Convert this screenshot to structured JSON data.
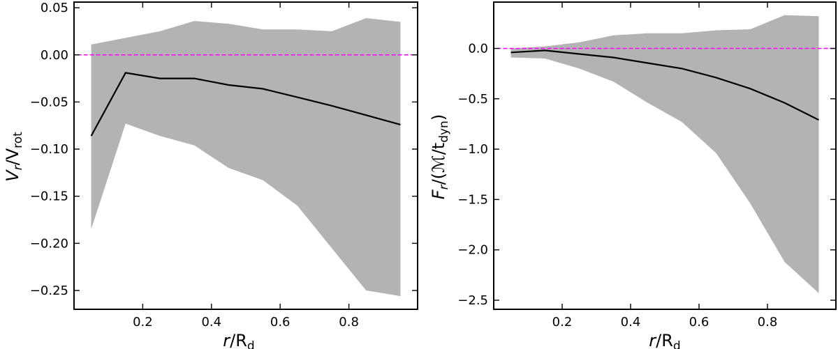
{
  "chart_data": [
    {
      "type": "area",
      "x": [
        0.05,
        0.15,
        0.25,
        0.35,
        0.45,
        0.55,
        0.65,
        0.75,
        0.85,
        0.95
      ],
      "series": [
        {
          "name": "median",
          "values": [
            -0.086,
            -0.019,
            -0.025,
            -0.025,
            -0.032,
            -0.036,
            -0.045,
            -0.054,
            -0.064,
            -0.074
          ]
        },
        {
          "name": "upper",
          "values": [
            0.011,
            0.018,
            0.025,
            0.036,
            0.033,
            0.027,
            0.027,
            0.025,
            0.039,
            0.035
          ]
        },
        {
          "name": "lower",
          "values": [
            -0.185,
            -0.073,
            -0.086,
            -0.096,
            -0.12,
            -0.133,
            -0.16,
            -0.205,
            -0.25,
            -0.256
          ]
        }
      ],
      "reference_line": {
        "y": 0.0,
        "color": "#ff00ff",
        "style": "dashed"
      },
      "xlim": [
        0.0,
        1.0
      ],
      "ylim": [
        -0.27,
        0.056
      ],
      "xticks": [
        0.2,
        0.4,
        0.6,
        0.8
      ],
      "yticks": [
        0.05,
        0.0,
        -0.05,
        -0.1,
        -0.15,
        -0.2,
        -0.25
      ],
      "xtick_labels": [
        "0.2",
        "0.4",
        "0.6",
        "0.8"
      ],
      "ytick_labels": [
        "0.05",
        "0.00",
        "−0.05",
        "−0.10",
        "−0.15",
        "−0.20",
        "−0.25"
      ],
      "xlabel": {
        "main": "r",
        "sep": "/R",
        "sub": "d"
      },
      "ylabel": {
        "main": "V",
        "sub1": "r",
        "sep": "/V",
        "sub2": "rot"
      },
      "colors": {
        "band": "#b3b3b3",
        "line": "#000000",
        "ref": "#ff00ff"
      }
    },
    {
      "type": "area",
      "x": [
        0.05,
        0.15,
        0.25,
        0.35,
        0.45,
        0.55,
        0.65,
        0.75,
        0.85,
        0.95
      ],
      "series": [
        {
          "name": "median",
          "values": [
            -0.04,
            -0.02,
            -0.055,
            -0.09,
            -0.145,
            -0.2,
            -0.29,
            -0.4,
            -0.54,
            -0.71
          ]
        },
        {
          "name": "upper",
          "values": [
            0.0,
            0.02,
            0.06,
            0.13,
            0.15,
            0.15,
            0.18,
            0.19,
            0.33,
            0.32
          ]
        },
        {
          "name": "lower",
          "values": [
            -0.09,
            -0.1,
            -0.2,
            -0.33,
            -0.54,
            -0.73,
            -1.04,
            -1.54,
            -2.12,
            -2.43
          ]
        }
      ],
      "reference_line": {
        "y": 0.0,
        "color": "#ff00ff",
        "style": "dashed"
      },
      "xlim": [
        0.0,
        1.0
      ],
      "ylim": [
        -2.59,
        0.46
      ],
      "xticks": [
        0.2,
        0.4,
        0.6,
        0.8
      ],
      "yticks": [
        0.0,
        -0.5,
        -1.0,
        -1.5,
        -2.0,
        -2.5
      ],
      "xtick_labels": [
        "0.2",
        "0.4",
        "0.6",
        "0.8"
      ],
      "ytick_labels": [
        "0.0",
        "−0.5",
        "−1.0",
        "−1.5",
        "−2.0",
        "−2.5"
      ],
      "xlabel": {
        "main": "r",
        "sep": "/R",
        "sub": "d"
      },
      "ylabel": {
        "main": "F",
        "sub1": "r",
        "sep": "/(",
        "script": "ℳ",
        "sep2": "/t",
        "sub2": "dyn",
        "close": ")"
      },
      "colors": {
        "band": "#b3b3b3",
        "line": "#000000",
        "ref": "#ff00ff"
      }
    }
  ]
}
